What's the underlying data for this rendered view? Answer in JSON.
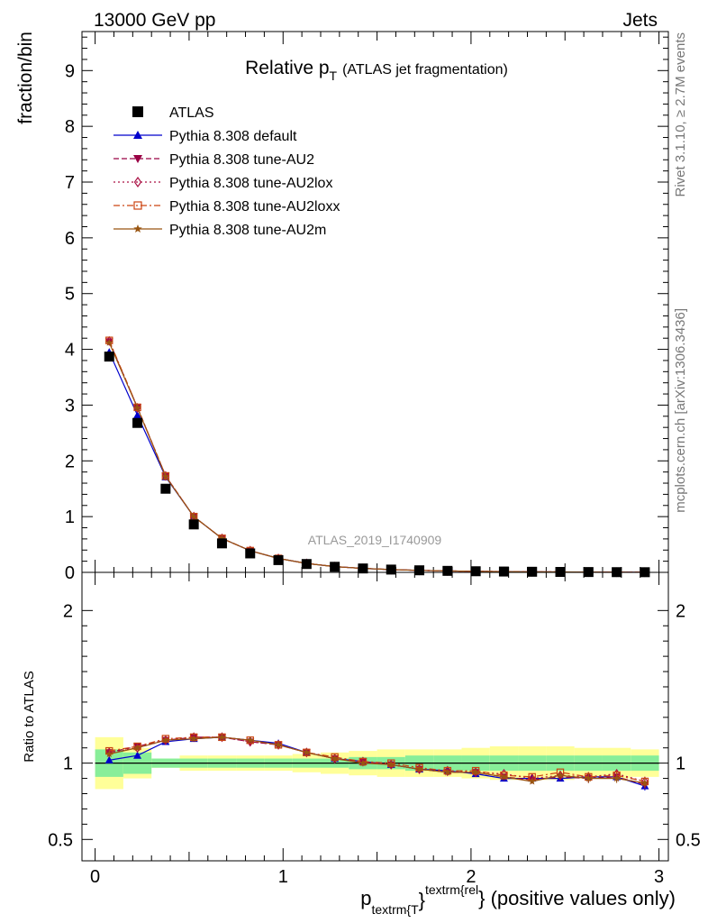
{
  "header": {
    "left": "13000 GeV pp",
    "right": "Jets",
    "side_top": "Rivet 3.1.10, ≥ 2.7M events",
    "side_bottom": "mcplots.cern.ch [arXiv:1306.3436]",
    "watermark": "ATLAS_2019_I1740909"
  },
  "chart_data": [
    {
      "type": "scatter",
      "title": "Relative p",
      "title_sub": "T",
      "title_suffix": "(ATLAS jet fragmentation)",
      "ylabel": "fraction/bin",
      "xlim": [
        -0.07,
        3.05
      ],
      "ylim": [
        0,
        9.7
      ],
      "yticks": [
        0,
        1,
        2,
        3,
        4,
        5,
        6,
        7,
        8,
        9
      ],
      "x": [
        0.075,
        0.225,
        0.375,
        0.525,
        0.675,
        0.825,
        0.975,
        1.125,
        1.275,
        1.425,
        1.575,
        1.725,
        1.875,
        2.025,
        2.175,
        2.325,
        2.475,
        2.625,
        2.775,
        2.925
      ],
      "legend": [
        {
          "name": "ATLAS",
          "color": "#000000",
          "marker": "square-filled",
          "line": "none"
        },
        {
          "name": "Pythia 8.308 default",
          "color": "#0000cc",
          "marker": "triangle-up",
          "line": "solid"
        },
        {
          "name": "Pythia 8.308 tune-AU2",
          "color": "#990044",
          "marker": "triangle-down",
          "line": "dashed"
        },
        {
          "name": "Pythia 8.308 tune-AU2lox",
          "color": "#aa1144",
          "marker": "diamond-open",
          "line": "dotted"
        },
        {
          "name": "Pythia 8.308 tune-AU2loxx",
          "color": "#cc4411",
          "marker": "square-open",
          "line": "dashdot"
        },
        {
          "name": "Pythia 8.308 tune-AU2m",
          "color": "#995511",
          "marker": "star",
          "line": "solid"
        }
      ],
      "series": [
        {
          "name": "ATLAS",
          "values": [
            3.87,
            2.68,
            1.5,
            0.86,
            0.52,
            0.34,
            0.22,
            0.15,
            0.1,
            0.07,
            0.05,
            0.037,
            0.027,
            0.02,
            0.015,
            0.011,
            0.008,
            0.006,
            0.004,
            0.003
          ]
        },
        {
          "name": "Pythia 8.308 default",
          "values": [
            3.95,
            2.82,
            1.71,
            1.0,
            0.61,
            0.39,
            0.25,
            0.16,
            0.104,
            0.071,
            0.05,
            0.036,
            0.026,
            0.019,
            0.0135,
            0.0099,
            0.0072,
            0.0055,
            0.0037,
            0.0026
          ]
        },
        {
          "name": "Pythia 8.308 tune-AU2",
          "values": [
            4.14,
            2.96,
            1.73,
            1.0,
            0.61,
            0.39,
            0.25,
            0.16,
            0.104,
            0.071,
            0.05,
            0.036,
            0.026,
            0.019,
            0.0138,
            0.01,
            0.0073,
            0.0055,
            0.0037,
            0.0025
          ]
        },
        {
          "name": "Pythia 8.308 tune-AU2lox",
          "values": [
            4.15,
            2.95,
            1.73,
            1.0,
            0.61,
            0.39,
            0.25,
            0.16,
            0.104,
            0.072,
            0.05,
            0.036,
            0.026,
            0.019,
            0.014,
            0.0101,
            0.0073,
            0.0055,
            0.0037,
            0.0026
          ]
        },
        {
          "name": "Pythia 8.308 tune-AU2loxx",
          "values": [
            4.16,
            2.96,
            1.73,
            1.0,
            0.61,
            0.39,
            0.25,
            0.16,
            0.104,
            0.071,
            0.05,
            0.036,
            0.026,
            0.019,
            0.0139,
            0.0101,
            0.0075,
            0.0055,
            0.0037,
            0.0026
          ]
        },
        {
          "name": "Pythia 8.308 tune-AU2m",
          "values": [
            4.12,
            2.95,
            1.72,
            1.0,
            0.61,
            0.39,
            0.25,
            0.16,
            0.103,
            0.071,
            0.05,
            0.036,
            0.026,
            0.019,
            0.0137,
            0.0099,
            0.0073,
            0.0055,
            0.0036,
            0.0026
          ]
        }
      ]
    },
    {
      "type": "line",
      "ylabel": "Ratio to ATLAS",
      "xlim": [
        -0.07,
        3.05
      ],
      "ylim": [
        0.36,
        2.25
      ],
      "yticks": [
        0.5,
        1,
        2
      ],
      "xticks": [
        0,
        1,
        2,
        3
      ],
      "xlabel": "p",
      "xlabel_sub": "textrm{T",
      "xlabel_sup": "textrm{rel",
      "xlabel_suffix": "} (positive values only)",
      "x": [
        0.075,
        0.225,
        0.375,
        0.525,
        0.675,
        0.825,
        0.975,
        1.125,
        1.275,
        1.425,
        1.575,
        1.725,
        1.875,
        2.025,
        2.175,
        2.325,
        2.475,
        2.625,
        2.775,
        2.925
      ],
      "bin_edges": [
        0.0,
        0.15,
        0.3,
        0.45,
        0.6,
        0.75,
        0.9,
        1.05,
        1.2,
        1.35,
        1.5,
        1.65,
        1.8,
        1.95,
        2.1,
        2.25,
        2.4,
        2.55,
        2.7,
        2.85,
        3.0
      ],
      "band_inner": [
        0.09,
        0.07,
        0.03,
        0.03,
        0.03,
        0.03,
        0.03,
        0.03,
        0.03,
        0.04,
        0.04,
        0.05,
        0.05,
        0.05,
        0.05,
        0.05,
        0.05,
        0.05,
        0.05,
        0.05
      ],
      "band_outer": [
        0.17,
        0.1,
        0.03,
        0.05,
        0.05,
        0.05,
        0.05,
        0.06,
        0.07,
        0.08,
        0.09,
        0.09,
        0.09,
        0.1,
        0.11,
        0.11,
        0.11,
        0.1,
        0.1,
        0.09
      ],
      "series": [
        {
          "name": "Pythia 8.308 default",
          "values": [
            1.02,
            1.05,
            1.14,
            1.16,
            1.17,
            1.15,
            1.13,
            1.07,
            1.03,
            1.01,
            0.99,
            0.96,
            0.95,
            0.93,
            0.9,
            0.9,
            0.9,
            0.91,
            0.91,
            0.85
          ]
        },
        {
          "name": "Pythia 8.308 tune-AU2",
          "values": [
            1.07,
            1.11,
            1.15,
            1.17,
            1.17,
            1.14,
            1.12,
            1.07,
            1.03,
            1.01,
            0.99,
            0.96,
            0.94,
            0.94,
            0.91,
            0.89,
            0.91,
            0.9,
            0.91,
            0.86
          ]
        },
        {
          "name": "Pythia 8.308 tune-AU2lox",
          "values": [
            1.07,
            1.1,
            1.15,
            1.17,
            1.17,
            1.14,
            1.12,
            1.07,
            1.03,
            1.01,
            0.99,
            0.96,
            0.95,
            0.94,
            0.93,
            0.9,
            0.92,
            0.91,
            0.93,
            0.88
          ]
        },
        {
          "name": "Pythia 8.308 tune-AU2loxx",
          "values": [
            1.08,
            1.11,
            1.16,
            1.17,
            1.17,
            1.15,
            1.12,
            1.07,
            1.04,
            1.01,
            1.0,
            0.97,
            0.95,
            0.95,
            0.92,
            0.91,
            0.94,
            0.91,
            0.92,
            0.88
          ]
        },
        {
          "name": "Pythia 8.308 tune-AU2m",
          "values": [
            1.06,
            1.1,
            1.15,
            1.16,
            1.17,
            1.15,
            1.12,
            1.07,
            1.03,
            1.0,
            0.99,
            0.96,
            0.94,
            0.94,
            0.91,
            0.88,
            0.92,
            0.9,
            0.9,
            0.87
          ]
        }
      ]
    }
  ]
}
